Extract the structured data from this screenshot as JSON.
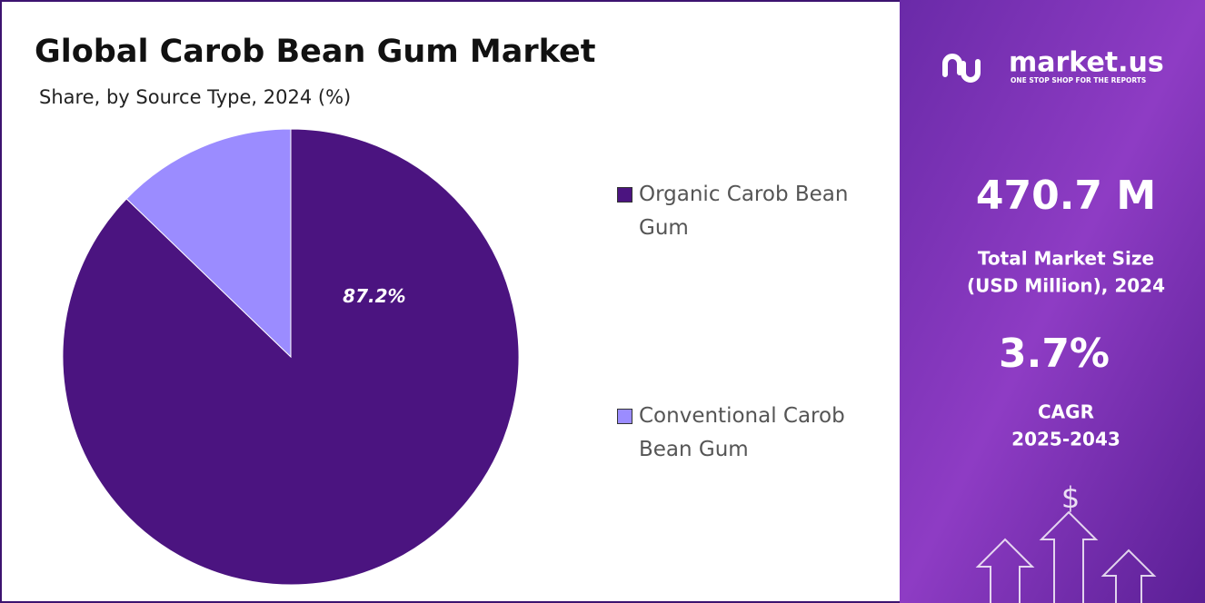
{
  "chart_data": {
    "type": "pie",
    "title": "Global Carob Bean Gum Market",
    "subtitle": "Share, by Source Type, 2024 (%)",
    "categories": [
      "Organic Carob Bean Gum",
      "Conventional Carob Bean Gum"
    ],
    "values": [
      87.2,
      12.8
    ],
    "value_labels": [
      "87.2%",
      null
    ],
    "colors": [
      "#4b1480",
      "#9b8cff"
    ],
    "legend": "right"
  },
  "sidebar": {
    "logo": "market.us",
    "tagline": "ONE STOP SHOP FOR THE REPORTS",
    "market_size": "470.7 M",
    "market_size_label": [
      "Total Market Size",
      "(USD Million), 2024"
    ],
    "cagr": "3.7%",
    "cagr_label": [
      "CAGR",
      "2025-2043"
    ],
    "icon": "$"
  }
}
